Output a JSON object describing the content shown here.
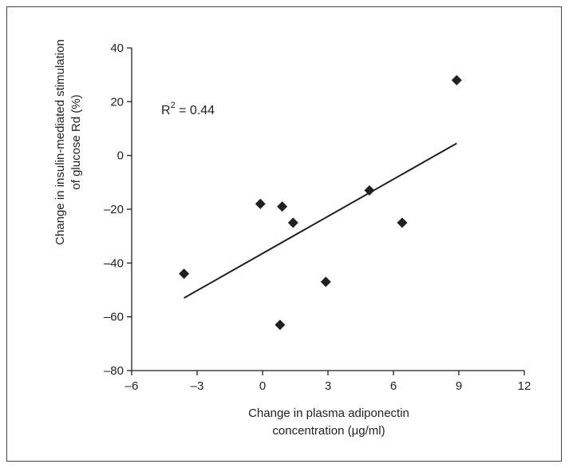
{
  "chart_data": {
    "type": "scatter",
    "xlabel": [
      "Change in plasma adiponectin",
      "concentration (μg/ml)"
    ],
    "ylabel": [
      "Change in insulin-mediated stimulation",
      "of glucose Rd (%)"
    ],
    "xlim": [
      -6,
      12
    ],
    "ylim": [
      -80,
      40
    ],
    "xticks": [
      -6,
      -3,
      0,
      3,
      6,
      9,
      12
    ],
    "yticks": [
      40,
      20,
      0,
      -20,
      -40,
      -60,
      -80
    ],
    "xtick_labels": [
      "–6",
      "–3",
      "0",
      "3",
      "6",
      "9",
      "12"
    ],
    "ytick_labels": [
      "40",
      "20",
      "0",
      "–20",
      "–40",
      "–60",
      "–80"
    ],
    "points": [
      {
        "x": -3.6,
        "y": -44
      },
      {
        "x": -0.1,
        "y": -18
      },
      {
        "x": 0.8,
        "y": -63
      },
      {
        "x": 0.9,
        "y": -19
      },
      {
        "x": 1.4,
        "y": -25
      },
      {
        "x": 2.9,
        "y": -47
      },
      {
        "x": 4.9,
        "y": -13
      },
      {
        "x": 6.4,
        "y": -25
      },
      {
        "x": 8.9,
        "y": 28
      }
    ],
    "trendline": {
      "x1": -3.6,
      "y1": -53,
      "x2": 8.9,
      "y2": 4.5
    },
    "annotation": {
      "prefix": "R",
      "superscript": "2",
      "suffix": " = 0.44"
    },
    "grid": false,
    "marker": "diamond",
    "colors": {
      "marker": "#231f20",
      "line": "#231f20",
      "axis": "#231f20"
    }
  }
}
